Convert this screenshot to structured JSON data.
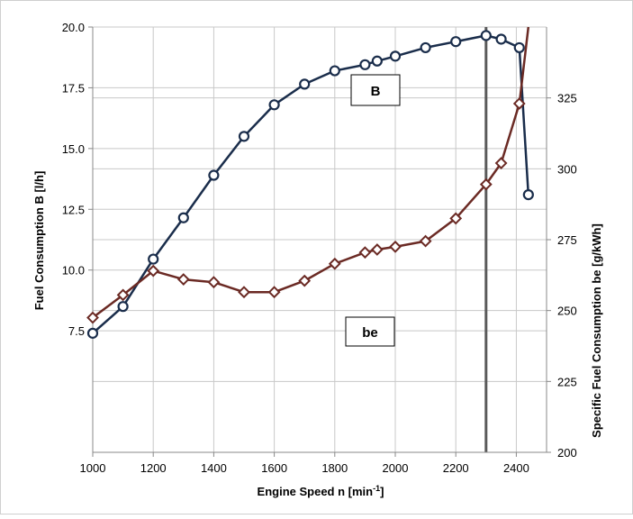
{
  "chart_data": {
    "type": "line",
    "xlabel": "Engine Speed n [min",
    "xlabel_sup": "-1",
    "xlabel_suffix": "]",
    "ylabel_left": "Fuel Consumption B [l/h]",
    "ylabel_right": "Specific Fuel Consumption be [g/kWh]",
    "xlim": [
      1000,
      2500
    ],
    "ylim_left": [
      2.5,
      20.0
    ],
    "ylim_right": [
      200,
      350
    ],
    "x_ticks": [
      "1000",
      "1200",
      "1400",
      "1600",
      "1800",
      "2000",
      "2200",
      "2400"
    ],
    "y_left_ticks": [
      "7.5",
      "10.0",
      "12.5",
      "15.0",
      "17.5",
      "20.0"
    ],
    "y_right_ticks": [
      "200",
      "225",
      "250",
      "275",
      "300",
      "325"
    ],
    "grid": true,
    "vertical_marker_x": 2300,
    "series": [
      {
        "name": "B",
        "axis": "left",
        "color": "#1a2d4b",
        "marker": "circle",
        "x": [
          1000,
          1100,
          1200,
          1300,
          1400,
          1500,
          1600,
          1700,
          1800,
          1900,
          1940,
          2000,
          2100,
          2200,
          2300,
          2350,
          2410,
          2440
        ],
        "y": [
          7.4,
          8.5,
          10.45,
          12.15,
          13.9,
          15.5,
          16.8,
          17.65,
          18.2,
          18.45,
          18.6,
          18.8,
          19.15,
          19.4,
          19.65,
          19.5,
          19.15,
          13.1
        ]
      },
      {
        "name": "be",
        "axis": "right",
        "color": "#6b2a24",
        "marker": "diamond",
        "x": [
          1000,
          1100,
          1200,
          1300,
          1400,
          1500,
          1600,
          1700,
          1800,
          1900,
          1940,
          2000,
          2100,
          2200,
          2300,
          2350,
          2410
        ],
        "y": [
          247.5,
          255.5,
          264.0,
          261.0,
          260.0,
          256.5,
          256.5,
          260.5,
          266.5,
          270.5,
          271.5,
          272.5,
          274.5,
          282.5,
          294.5,
          302.0,
          323.0
        ],
        "steep_tail": [
          [
            2410,
            323.0
          ],
          [
            2440,
            350
          ]
        ]
      }
    ]
  }
}
